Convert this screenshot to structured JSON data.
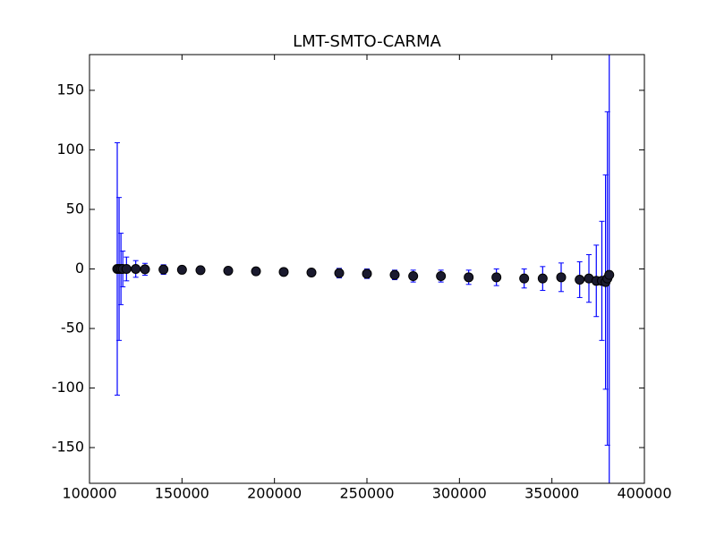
{
  "chart_data": {
    "type": "errorbar",
    "title": "LMT-SMTO-CARMA",
    "x": [
      115000,
      116000,
      117000,
      118000,
      120000,
      125000,
      130000,
      140000,
      150000,
      160000,
      175000,
      190000,
      205000,
      220000,
      235000,
      250000,
      265000,
      275000,
      290000,
      305000,
      320000,
      335000,
      345000,
      355000,
      365000,
      370000,
      374000,
      377000,
      379000,
      380000,
      381000
    ],
    "series": [
      {
        "color": "#0000ff",
        "marker_color": "#1a1a2e",
        "values": [
          0,
          0,
          0,
          0,
          0,
          0,
          -0.3,
          -0.5,
          -0.7,
          -1,
          -1.5,
          -2,
          -2.5,
          -3,
          -3.5,
          -4,
          -5,
          -6,
          -6,
          -7,
          -7,
          -8,
          -8,
          -7,
          -9,
          -8,
          -10,
          -10,
          -11,
          -8,
          -5
        ],
        "errors": [
          106,
          60,
          30,
          15,
          10,
          7,
          5,
          4,
          3,
          3,
          3,
          3,
          3,
          3,
          4,
          4,
          4,
          5,
          5,
          6,
          7,
          8,
          10,
          12,
          15,
          20,
          30,
          50,
          90,
          140,
          200
        ]
      }
    ],
    "xlim": [
      100000,
      400000
    ],
    "xticks": [
      100000,
      150000,
      200000,
      250000,
      300000,
      350000,
      400000
    ],
    "ylim": [
      -180,
      180
    ],
    "yticks": [
      -150,
      -100,
      -50,
      0,
      50,
      100,
      150
    ]
  }
}
